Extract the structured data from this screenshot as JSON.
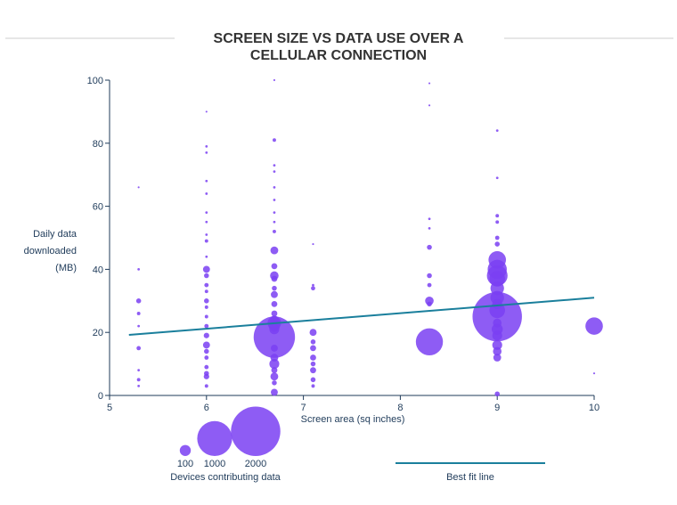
{
  "chart_data": {
    "type": "scatter",
    "title_lines": [
      "SCREEN SIZE VS DATA USE OVER A",
      "CELLULAR CONNECTION"
    ],
    "xlabel": "Screen area (sq inches)",
    "ylabel_lines": [
      "Daily data",
      "downloaded",
      "(MB)"
    ],
    "xlim": [
      5,
      10
    ],
    "ylim": [
      0,
      100
    ],
    "x_ticks": [
      5,
      6,
      7,
      8,
      9,
      10
    ],
    "y_ticks": [
      0,
      20,
      40,
      60,
      80,
      100
    ],
    "grid": false,
    "colors": {
      "points": "#7a3ff2",
      "fit_line": "#1a7f9c",
      "axis": "#1f3b5a",
      "rule": "#cccccc"
    },
    "points": [
      {
        "x": 5.3,
        "y": 30,
        "n": 20
      },
      {
        "x": 5.3,
        "y": 26,
        "n": 10
      },
      {
        "x": 5.3,
        "y": 15,
        "n": 15
      },
      {
        "x": 5.3,
        "y": 40,
        "n": 5
      },
      {
        "x": 5.3,
        "y": 8,
        "n": 5
      },
      {
        "x": 5.3,
        "y": 5,
        "n": 10
      },
      {
        "x": 5.3,
        "y": 3,
        "n": 5
      },
      {
        "x": 5.3,
        "y": 66,
        "n": 3
      },
      {
        "x": 5.3,
        "y": 22,
        "n": 5
      },
      {
        "x": 6.0,
        "y": 40,
        "n": 40
      },
      {
        "x": 6.0,
        "y": 38,
        "n": 20
      },
      {
        "x": 6.0,
        "y": 35,
        "n": 15
      },
      {
        "x": 6.0,
        "y": 33,
        "n": 10
      },
      {
        "x": 6.0,
        "y": 30,
        "n": 20
      },
      {
        "x": 6.0,
        "y": 28,
        "n": 10
      },
      {
        "x": 6.0,
        "y": 25,
        "n": 10
      },
      {
        "x": 6.0,
        "y": 22,
        "n": 15
      },
      {
        "x": 6.0,
        "y": 19,
        "n": 25
      },
      {
        "x": 6.0,
        "y": 16,
        "n": 40
      },
      {
        "x": 6.0,
        "y": 14,
        "n": 20
      },
      {
        "x": 6.0,
        "y": 12,
        "n": 15
      },
      {
        "x": 6.0,
        "y": 9,
        "n": 15
      },
      {
        "x": 6.0,
        "y": 7,
        "n": 20
      },
      {
        "x": 6.0,
        "y": 6,
        "n": 25
      },
      {
        "x": 6.0,
        "y": 3,
        "n": 10
      },
      {
        "x": 6.0,
        "y": 49,
        "n": 10
      },
      {
        "x": 6.0,
        "y": 51,
        "n": 5
      },
      {
        "x": 6.0,
        "y": 55,
        "n": 5
      },
      {
        "x": 6.0,
        "y": 58,
        "n": 5
      },
      {
        "x": 6.0,
        "y": 64,
        "n": 5
      },
      {
        "x": 6.0,
        "y": 68,
        "n": 5
      },
      {
        "x": 6.0,
        "y": 77,
        "n": 5
      },
      {
        "x": 6.0,
        "y": 79,
        "n": 5
      },
      {
        "x": 6.0,
        "y": 90,
        "n": 3
      },
      {
        "x": 6.0,
        "y": 44,
        "n": 5
      },
      {
        "x": 6.7,
        "y": 18.5,
        "n": 1400
      },
      {
        "x": 6.7,
        "y": 23,
        "n": 150
      },
      {
        "x": 6.7,
        "y": 22,
        "n": 100
      },
      {
        "x": 6.7,
        "y": 21,
        "n": 80
      },
      {
        "x": 6.7,
        "y": 24,
        "n": 60
      },
      {
        "x": 6.7,
        "y": 46,
        "n": 50
      },
      {
        "x": 6.7,
        "y": 41,
        "n": 30
      },
      {
        "x": 6.7,
        "y": 38,
        "n": 60
      },
      {
        "x": 6.7,
        "y": 37,
        "n": 30
      },
      {
        "x": 6.7,
        "y": 34,
        "n": 20
      },
      {
        "x": 6.7,
        "y": 32,
        "n": 40
      },
      {
        "x": 6.7,
        "y": 29,
        "n": 30
      },
      {
        "x": 6.7,
        "y": 26,
        "n": 30
      },
      {
        "x": 6.7,
        "y": 15,
        "n": 40
      },
      {
        "x": 6.7,
        "y": 12,
        "n": 50
      },
      {
        "x": 6.7,
        "y": 10,
        "n": 80
      },
      {
        "x": 6.7,
        "y": 8,
        "n": 30
      },
      {
        "x": 6.7,
        "y": 6,
        "n": 50
      },
      {
        "x": 6.7,
        "y": 4,
        "n": 20
      },
      {
        "x": 6.7,
        "y": 1,
        "n": 40
      },
      {
        "x": 6.7,
        "y": 52,
        "n": 10
      },
      {
        "x": 6.7,
        "y": 55,
        "n": 5
      },
      {
        "x": 6.7,
        "y": 58,
        "n": 5
      },
      {
        "x": 6.7,
        "y": 62,
        "n": 5
      },
      {
        "x": 6.7,
        "y": 66,
        "n": 5
      },
      {
        "x": 6.7,
        "y": 71,
        "n": 5
      },
      {
        "x": 6.7,
        "y": 73,
        "n": 5
      },
      {
        "x": 6.7,
        "y": 81,
        "n": 10
      },
      {
        "x": 6.7,
        "y": 100,
        "n": 3
      },
      {
        "x": 7.1,
        "y": 20,
        "n": 40
      },
      {
        "x": 7.1,
        "y": 17,
        "n": 20
      },
      {
        "x": 7.1,
        "y": 15,
        "n": 30
      },
      {
        "x": 7.1,
        "y": 12,
        "n": 30
      },
      {
        "x": 7.1,
        "y": 10,
        "n": 20
      },
      {
        "x": 7.1,
        "y": 8,
        "n": 30
      },
      {
        "x": 7.1,
        "y": 5,
        "n": 20
      },
      {
        "x": 7.1,
        "y": 3,
        "n": 10
      },
      {
        "x": 7.1,
        "y": 34,
        "n": 15
      },
      {
        "x": 7.1,
        "y": 35,
        "n": 5
      },
      {
        "x": 7.1,
        "y": 48,
        "n": 3
      },
      {
        "x": 8.3,
        "y": 17,
        "n": 600
      },
      {
        "x": 8.3,
        "y": 30,
        "n": 60
      },
      {
        "x": 8.3,
        "y": 29,
        "n": 20
      },
      {
        "x": 8.3,
        "y": 38,
        "n": 20
      },
      {
        "x": 8.3,
        "y": 35,
        "n": 15
      },
      {
        "x": 8.3,
        "y": 47,
        "n": 20
      },
      {
        "x": 8.3,
        "y": 53,
        "n": 5
      },
      {
        "x": 8.3,
        "y": 92,
        "n": 3
      },
      {
        "x": 8.3,
        "y": 99,
        "n": 3
      },
      {
        "x": 8.3,
        "y": 56,
        "n": 5
      },
      {
        "x": 9.0,
        "y": 25,
        "n": 2000
      },
      {
        "x": 9.0,
        "y": 43,
        "n": 250
      },
      {
        "x": 9.0,
        "y": 40,
        "n": 300
      },
      {
        "x": 9.0,
        "y": 38,
        "n": 350
      },
      {
        "x": 9.0,
        "y": 37,
        "n": 200
      },
      {
        "x": 9.0,
        "y": 34,
        "n": 150
      },
      {
        "x": 9.0,
        "y": 31,
        "n": 150
      },
      {
        "x": 9.0,
        "y": 29,
        "n": 80
      },
      {
        "x": 9.0,
        "y": 27,
        "n": 200
      },
      {
        "x": 9.0,
        "y": 21,
        "n": 100
      },
      {
        "x": 9.0,
        "y": 19,
        "n": 80
      },
      {
        "x": 9.0,
        "y": 16,
        "n": 80
      },
      {
        "x": 9.0,
        "y": 14,
        "n": 60
      },
      {
        "x": 9.0,
        "y": 12,
        "n": 50
      },
      {
        "x": 9.0,
        "y": 48,
        "n": 20
      },
      {
        "x": 9.0,
        "y": 50,
        "n": 15
      },
      {
        "x": 9.0,
        "y": 55,
        "n": 10
      },
      {
        "x": 9.0,
        "y": 57,
        "n": 10
      },
      {
        "x": 9.0,
        "y": 69,
        "n": 5
      },
      {
        "x": 9.0,
        "y": 84,
        "n": 5
      },
      {
        "x": 9.0,
        "y": 0.5,
        "n": 20
      },
      {
        "x": 9.0,
        "y": 23,
        "n": 60
      },
      {
        "x": 10.0,
        "y": 22,
        "n": 250
      },
      {
        "x": 10.0,
        "y": 7,
        "n": 3
      }
    ],
    "fit_line": {
      "x": [
        5.2,
        10.0
      ],
      "y": [
        19.2,
        31.0
      ]
    },
    "size_legend": {
      "values": [
        100,
        1000,
        2000
      ],
      "label": "Devices contributing data"
    },
    "line_legend": {
      "label": "Best fit line"
    }
  }
}
